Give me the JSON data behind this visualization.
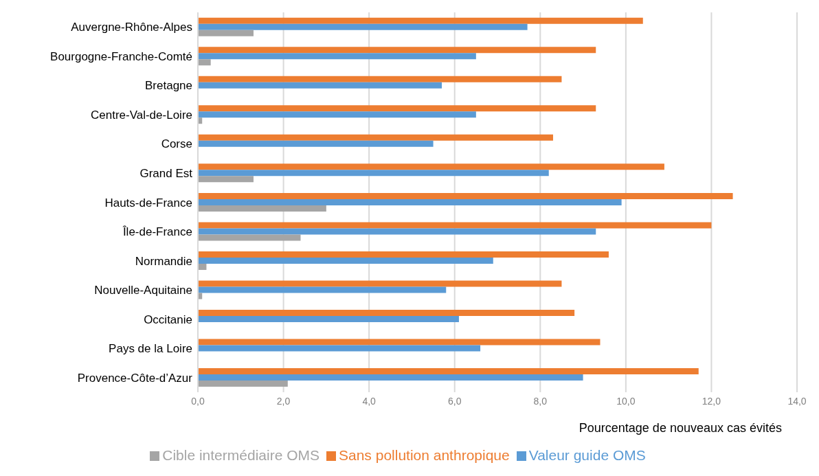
{
  "chart_data": {
    "type": "bar",
    "orientation": "horizontal",
    "xlabel": "Pourcentage de nouveaux cas évités",
    "categories": [
      "Auvergne-Rhône-Alpes",
      "Bourgogne-Franche-Comté",
      "Bretagne",
      "Centre-Val-de-Loire",
      "Corse",
      "Grand Est",
      "Hauts-de-France",
      "Île-de-France",
      "Normandie",
      "Nouvelle-Aquitaine",
      "Occitanie",
      "Pays de la Loire",
      "Provence-Côte-d’Azur"
    ],
    "series": [
      {
        "name": "Sans pollution anthropique",
        "color": "#ed7d31",
        "values": [
          10.4,
          9.3,
          8.5,
          9.3,
          8.3,
          10.9,
          12.5,
          12.0,
          9.6,
          8.5,
          8.8,
          9.4,
          11.7
        ]
      },
      {
        "name": "Valeur guide OMS",
        "color": "#5b9bd5",
        "values": [
          7.7,
          6.5,
          5.7,
          6.5,
          5.5,
          8.2,
          9.9,
          9.3,
          6.9,
          5.8,
          6.1,
          6.6,
          9.0
        ]
      },
      {
        "name": "Cible intermédiaire OMS",
        "color": "#a5a5a5",
        "values": [
          1.3,
          0.3,
          null,
          0.1,
          null,
          1.3,
          3.0,
          2.4,
          0.2,
          0.1,
          null,
          null,
          2.1
        ]
      }
    ],
    "xlim": [
      0,
      14
    ],
    "xticks": [
      {
        "value": 0,
        "label": "0,0"
      },
      {
        "value": 2,
        "label": "2,0"
      },
      {
        "value": 4,
        "label": "4,0"
      },
      {
        "value": 6,
        "label": "6,0"
      },
      {
        "value": 8,
        "label": "8,0"
      },
      {
        "value": 10,
        "label": "10,0"
      },
      {
        "value": 12,
        "label": "12,0"
      },
      {
        "value": 14,
        "label": "14,0"
      }
    ],
    "grid": "x",
    "legend": "bottom"
  }
}
